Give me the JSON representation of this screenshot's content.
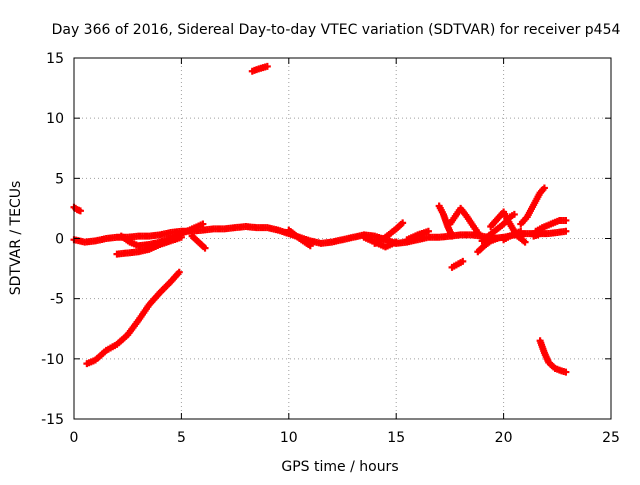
{
  "chart_data": {
    "type": "scatter",
    "title": "Day 366 of 2016, Sidereal Day-to-day VTEC variation (SDTVAR) for receiver p454",
    "xlabel": "GPS time / hours",
    "ylabel": "SDTVAR / TECUs",
    "xlim": [
      0,
      25
    ],
    "ylim": [
      -15,
      15
    ],
    "x_ticks": [
      "0",
      "5",
      "10",
      "15",
      "20",
      "25"
    ],
    "y_ticks": [
      "-15",
      "-10",
      "-5",
      "0",
      "5",
      "10",
      "15"
    ],
    "grid": true,
    "series_color": "#ff0000",
    "series": [
      {
        "points": [
          [
            0.0,
            -0.1
          ],
          [
            0.5,
            -0.3
          ],
          [
            1.0,
            -0.2
          ],
          [
            1.5,
            0.0
          ],
          [
            2.0,
            0.1
          ],
          [
            2.5,
            0.1
          ],
          [
            3.0,
            0.2
          ],
          [
            3.5,
            0.2
          ],
          [
            4.0,
            0.3
          ],
          [
            4.5,
            0.5
          ],
          [
            5.0,
            0.6
          ],
          [
            5.5,
            0.6
          ],
          [
            6.0,
            0.7
          ],
          [
            6.5,
            0.8
          ],
          [
            7.0,
            0.8
          ],
          [
            7.5,
            0.9
          ],
          [
            8.0,
            1.0
          ],
          [
            8.5,
            0.9
          ],
          [
            9.0,
            0.9
          ],
          [
            9.5,
            0.7
          ],
          [
            10.0,
            0.4
          ],
          [
            10.5,
            0.1
          ],
          [
            11.0,
            -0.2
          ],
          [
            11.5,
            -0.4
          ],
          [
            12.0,
            -0.3
          ],
          [
            12.5,
            -0.1
          ],
          [
            13.0,
            0.1
          ],
          [
            13.5,
            0.3
          ],
          [
            14.0,
            0.2
          ],
          [
            14.5,
            -0.1
          ],
          [
            15.0,
            -0.4
          ],
          [
            15.5,
            -0.3
          ],
          [
            16.0,
            -0.1
          ],
          [
            16.5,
            0.1
          ],
          [
            17.0,
            0.1
          ],
          [
            17.5,
            0.2
          ],
          [
            18.0,
            0.3
          ],
          [
            18.5,
            0.3
          ],
          [
            19.0,
            0.2
          ],
          [
            19.5,
            0.0
          ],
          [
            20.0,
            0.1
          ],
          [
            20.5,
            0.3
          ],
          [
            21.0,
            0.4
          ],
          [
            21.5,
            0.4
          ],
          [
            22.0,
            0.4
          ],
          [
            22.5,
            0.5
          ],
          [
            22.9,
            0.6
          ]
        ]
      },
      {
        "points": [
          [
            2.0,
            -1.3
          ],
          [
            2.5,
            -1.2
          ],
          [
            3.0,
            -1.1
          ],
          [
            3.5,
            -0.9
          ],
          [
            4.0,
            -0.5
          ],
          [
            4.5,
            -0.2
          ],
          [
            5.0,
            0.1
          ]
        ]
      },
      {
        "points": [
          [
            2.2,
            0.2
          ],
          [
            2.6,
            -0.3
          ],
          [
            3.0,
            -0.6
          ],
          [
            3.5,
            -0.5
          ],
          [
            4.0,
            -0.3
          ],
          [
            4.5,
            0.0
          ],
          [
            5.0,
            0.4
          ],
          [
            5.5,
            0.8
          ],
          [
            6.0,
            1.2
          ]
        ]
      },
      {
        "points": [
          [
            5.5,
            0.2
          ],
          [
            5.8,
            -0.3
          ],
          [
            6.1,
            -0.8
          ]
        ]
      },
      {
        "points": [
          [
            10.0,
            0.7
          ],
          [
            10.5,
            0.0
          ],
          [
            11.0,
            -0.6
          ]
        ]
      },
      {
        "points": [
          [
            13.5,
            0.1
          ],
          [
            14.0,
            -0.3
          ],
          [
            14.5,
            -0.7
          ],
          [
            15.0,
            -0.3
          ]
        ]
      },
      {
        "points": [
          [
            14.0,
            -0.4
          ],
          [
            14.5,
            0.1
          ],
          [
            15.0,
            0.8
          ],
          [
            15.3,
            1.3
          ]
        ]
      },
      {
        "points": [
          [
            15.5,
            -0.1
          ],
          [
            16.0,
            0.3
          ],
          [
            16.5,
            0.6
          ]
        ]
      },
      {
        "points": [
          [
            17.0,
            2.7
          ],
          [
            17.2,
            2.0
          ],
          [
            17.4,
            1.0
          ],
          [
            17.6,
            0.2
          ]
        ]
      },
      {
        "points": [
          [
            17.5,
            1.2
          ],
          [
            18.0,
            2.5
          ],
          [
            18.3,
            1.8
          ],
          [
            18.6,
            1.0
          ],
          [
            18.8,
            0.5
          ]
        ]
      },
      {
        "points": [
          [
            17.6,
            -2.4
          ],
          [
            17.9,
            -2.1
          ],
          [
            18.1,
            -1.9
          ]
        ]
      },
      {
        "points": [
          [
            18.8,
            -1.1
          ],
          [
            19.1,
            -0.6
          ],
          [
            19.4,
            -0.2
          ],
          [
            19.7,
            0.0
          ]
        ]
      },
      {
        "points": [
          [
            19.0,
            -0.2
          ],
          [
            19.5,
            0.5
          ],
          [
            20.0,
            1.2
          ],
          [
            20.3,
            1.8
          ],
          [
            20.5,
            2.0
          ]
        ]
      },
      {
        "points": [
          [
            19.4,
            1.0
          ],
          [
            19.8,
            1.8
          ],
          [
            20.0,
            2.2
          ],
          [
            20.2,
            1.5
          ],
          [
            20.5,
            0.6
          ]
        ]
      },
      {
        "points": [
          [
            20.0,
            -0.1
          ],
          [
            20.4,
            0.3
          ],
          [
            20.8,
            0.6
          ]
        ]
      },
      {
        "points": [
          [
            20.5,
            0.4
          ],
          [
            20.8,
            0.0
          ],
          [
            21.0,
            -0.3
          ]
        ]
      },
      {
        "points": [
          [
            20.8,
            1.2
          ],
          [
            21.1,
            1.8
          ],
          [
            21.4,
            2.8
          ],
          [
            21.7,
            3.8
          ],
          [
            21.9,
            4.2
          ]
        ]
      },
      {
        "points": [
          [
            21.5,
            0.6
          ],
          [
            21.8,
            0.9
          ],
          [
            22.2,
            1.2
          ],
          [
            22.6,
            1.5
          ],
          [
            22.9,
            1.5
          ]
        ]
      },
      {
        "points": [
          [
            21.4,
            0.2
          ],
          [
            21.6,
            0.3
          ],
          [
            21.8,
            0.5
          ]
        ]
      },
      {
        "points": [
          [
            0.0,
            2.6
          ],
          [
            0.15,
            2.4
          ],
          [
            0.3,
            2.3
          ]
        ]
      },
      {
        "points": [
          [
            0.6,
            -10.4
          ],
          [
            1.0,
            -10.1
          ],
          [
            1.5,
            -9.3
          ],
          [
            2.0,
            -8.8
          ],
          [
            2.5,
            -8.0
          ],
          [
            3.0,
            -6.8
          ],
          [
            3.5,
            -5.5
          ],
          [
            4.0,
            -4.5
          ],
          [
            4.5,
            -3.6
          ],
          [
            4.9,
            -2.8
          ]
        ]
      },
      {
        "points": [
          [
            8.3,
            13.9
          ],
          [
            8.6,
            14.1
          ],
          [
            9.0,
            14.3
          ]
        ]
      },
      {
        "points": [
          [
            21.7,
            -8.5
          ],
          [
            21.9,
            -9.5
          ],
          [
            22.1,
            -10.3
          ],
          [
            22.4,
            -10.8
          ],
          [
            22.7,
            -11.0
          ],
          [
            22.9,
            -11.1
          ]
        ]
      }
    ]
  }
}
